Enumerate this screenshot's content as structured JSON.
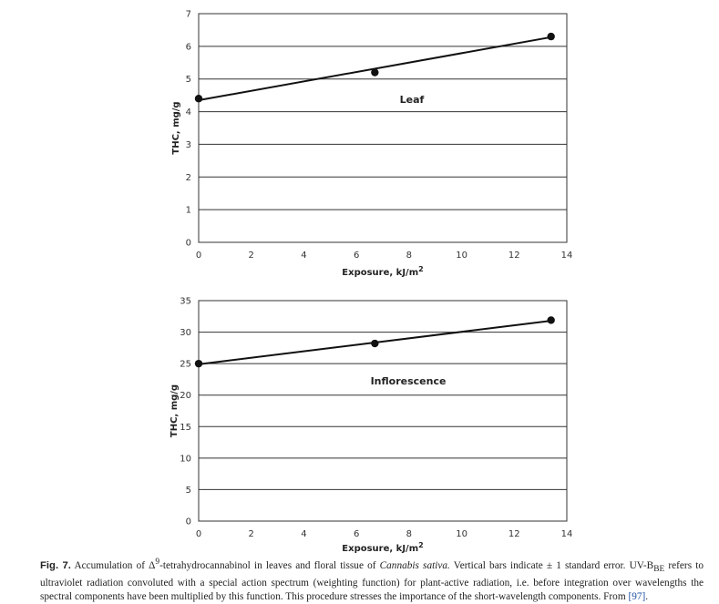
{
  "chart_data": [
    {
      "type": "line",
      "panel_label": "Leaf",
      "xlabel": "Exposure, kJ/m2",
      "ylabel": "THC, mg/g",
      "xlim": [
        0,
        14
      ],
      "ylim": [
        0,
        7
      ],
      "xticks": [
        0,
        2,
        4,
        6,
        8,
        10,
        12,
        14
      ],
      "yticks": [
        0,
        1,
        2,
        3,
        4,
        5,
        6,
        7
      ],
      "grid": "horizontal",
      "points": [
        {
          "x": 0,
          "y": 4.4
        },
        {
          "x": 6.7,
          "y": 5.2
        },
        {
          "x": 13.4,
          "y": 6.3
        }
      ],
      "fit_line": [
        {
          "x": 0,
          "y": 4.35
        },
        {
          "x": 13.4,
          "y": 6.28
        }
      ]
    },
    {
      "type": "line",
      "panel_label": "Inflorescence",
      "xlabel": "Exposure, kJ/m2",
      "ylabel": "THC, mg/g",
      "xlim": [
        0,
        14
      ],
      "ylim": [
        0,
        35
      ],
      "xticks": [
        0,
        2,
        4,
        6,
        8,
        10,
        12,
        14
      ],
      "yticks": [
        0,
        5,
        10,
        15,
        20,
        25,
        30,
        35
      ],
      "grid": "horizontal",
      "points": [
        {
          "x": 0,
          "y": 25
        },
        {
          "x": 6.7,
          "y": 28.2
        },
        {
          "x": 13.4,
          "y": 31.9
        }
      ],
      "fit_line": [
        {
          "x": 0,
          "y": 24.9
        },
        {
          "x": 13.4,
          "y": 31.8
        }
      ]
    }
  ],
  "caption": {
    "label": "Fig. 7.",
    "text_1": " Accumulation of Δ",
    "text_sup": "9",
    "text_2": "-tetrahydrocannabinol in leaves and floral tissue of ",
    "species": "Cannabis sativa.",
    "text_3": " Vertical bars indicate ± 1 standard error. UV-B",
    "text_sub": "BE",
    "text_4": " refers to ultraviolet radiation convoluted with a special action spectrum (weighting function) for plant-active radiation, i.e. before integration over wavelengths the spectral components have been multiplied by this function. This procedure stresses the importance of the short-wavelength components. From ",
    "reference": "[97]",
    "text_5": "."
  }
}
